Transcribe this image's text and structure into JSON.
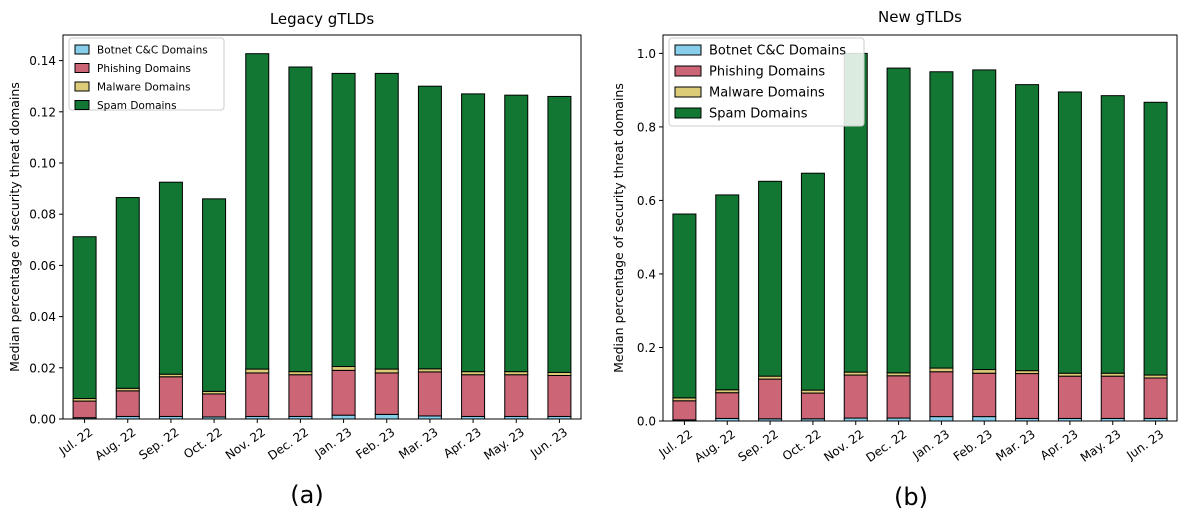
{
  "chart_data": [
    {
      "type": "bar",
      "stacked": true,
      "title": "Legacy gTLDs",
      "ylabel": "Median percentage of security threat domains",
      "xlabel": "",
      "panel_label": "(a)",
      "categories": [
        "Jul. 22",
        "Aug. 22",
        "Sep. 22",
        "Oct. 22",
        "Nov. 22",
        "Dec. 22",
        "Jan. 23",
        "Feb. 23",
        "Mar. 23",
        "Apr. 23",
        "May. 23",
        "Jun. 23"
      ],
      "ylim": [
        0,
        0.15
      ],
      "yticks": [
        0.0,
        0.02,
        0.04,
        0.06,
        0.08,
        0.1,
        0.12,
        0.14
      ],
      "ytick_labels": [
        "0.00",
        "0.02",
        "0.04",
        "0.06",
        "0.08",
        "0.10",
        "0.12",
        "0.14"
      ],
      "legend_position": "top-left",
      "series": [
        {
          "name": "Botnet C&C Domains",
          "color": "#87ceeb",
          "values": [
            0.0005,
            0.001,
            0.001,
            0.0008,
            0.001,
            0.001,
            0.0015,
            0.0018,
            0.0012,
            0.001,
            0.001,
            0.001
          ]
        },
        {
          "name": "Phishing Domains",
          "color": "#cc6677",
          "values": [
            0.0065,
            0.01,
            0.0155,
            0.009,
            0.017,
            0.0163,
            0.0175,
            0.0162,
            0.0172,
            0.0163,
            0.0163,
            0.016
          ]
        },
        {
          "name": "Malware Domains",
          "color": "#ddcc77",
          "values": [
            0.001,
            0.001,
            0.001,
            0.001,
            0.0015,
            0.0012,
            0.0015,
            0.0015,
            0.0012,
            0.0012,
            0.0012,
            0.0012
          ]
        },
        {
          "name": "Spam Domains",
          "color": "#117733",
          "values": [
            0.0632,
            0.0745,
            0.075,
            0.0752,
            0.1232,
            0.119,
            0.1145,
            0.1155,
            0.1104,
            0.1085,
            0.108,
            0.1078
          ]
        }
      ]
    },
    {
      "type": "bar",
      "stacked": true,
      "title": "New gTLDs",
      "ylabel": "Median percentage of security threat domains",
      "xlabel": "",
      "panel_label": "(b)",
      "categories": [
        "Jul. 22",
        "Aug. 22",
        "Sep. 22",
        "Oct. 22",
        "Nov. 22",
        "Dec. 22",
        "Jan. 23",
        "Feb. 23",
        "Mar. 23",
        "Apr. 23",
        "May. 23",
        "Jun. 23"
      ],
      "ylim": [
        0,
        1.05
      ],
      "yticks": [
        0.0,
        0.2,
        0.4,
        0.6,
        0.8,
        1.0
      ],
      "ytick_labels": [
        "0.0",
        "0.2",
        "0.4",
        "0.6",
        "0.8",
        "1.0"
      ],
      "legend_position": "top-left",
      "series": [
        {
          "name": "Botnet C&C Domains",
          "color": "#87ceeb",
          "values": [
            0.003,
            0.007,
            0.006,
            0.006,
            0.008,
            0.008,
            0.012,
            0.012,
            0.007,
            0.007,
            0.007,
            0.007
          ]
        },
        {
          "name": "Phishing Domains",
          "color": "#cc6677",
          "values": [
            0.052,
            0.07,
            0.108,
            0.07,
            0.117,
            0.115,
            0.122,
            0.118,
            0.122,
            0.115,
            0.115,
            0.11
          ]
        },
        {
          "name": "Malware Domains",
          "color": "#ddcc77",
          "values": [
            0.008,
            0.008,
            0.008,
            0.008,
            0.008,
            0.008,
            0.01,
            0.01,
            0.008,
            0.008,
            0.008,
            0.008
          ]
        },
        {
          "name": "Spam Domains",
          "color": "#117733",
          "values": [
            0.5,
            0.53,
            0.53,
            0.59,
            0.867,
            0.829,
            0.806,
            0.815,
            0.778,
            0.765,
            0.755,
            0.742
          ]
        }
      ]
    }
  ]
}
